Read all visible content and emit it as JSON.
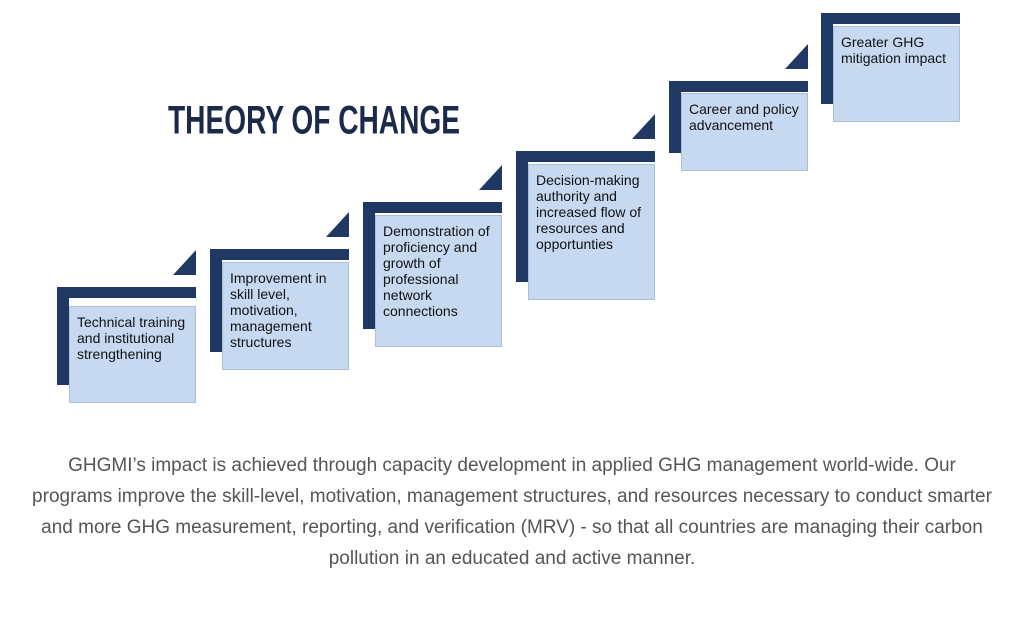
{
  "title": "THEORY OF CHANGE",
  "steps": [
    {
      "label": "Technical training and institutional strengthening"
    },
    {
      "label": "Improvement in skill level, motivation, management structures"
    },
    {
      "label": "Demonstration of proficiency and growth of professional network connections"
    },
    {
      "label": "Decision-making authority and increased flow of resources and opportunties"
    },
    {
      "label": "Career and policy advancement"
    },
    {
      "label": "Greater GHG mitigation impact"
    }
  ],
  "description": "GHGMI’s impact is achieved through capacity development in applied GHG management world-wide.  Our programs improve the skill-level, motivation, management structures, and resources necessary to conduct smarter and more GHG measurement, reporting, and verification (MRV) - so that all countries are managing their carbon pollution in an educated and active manner."
}
